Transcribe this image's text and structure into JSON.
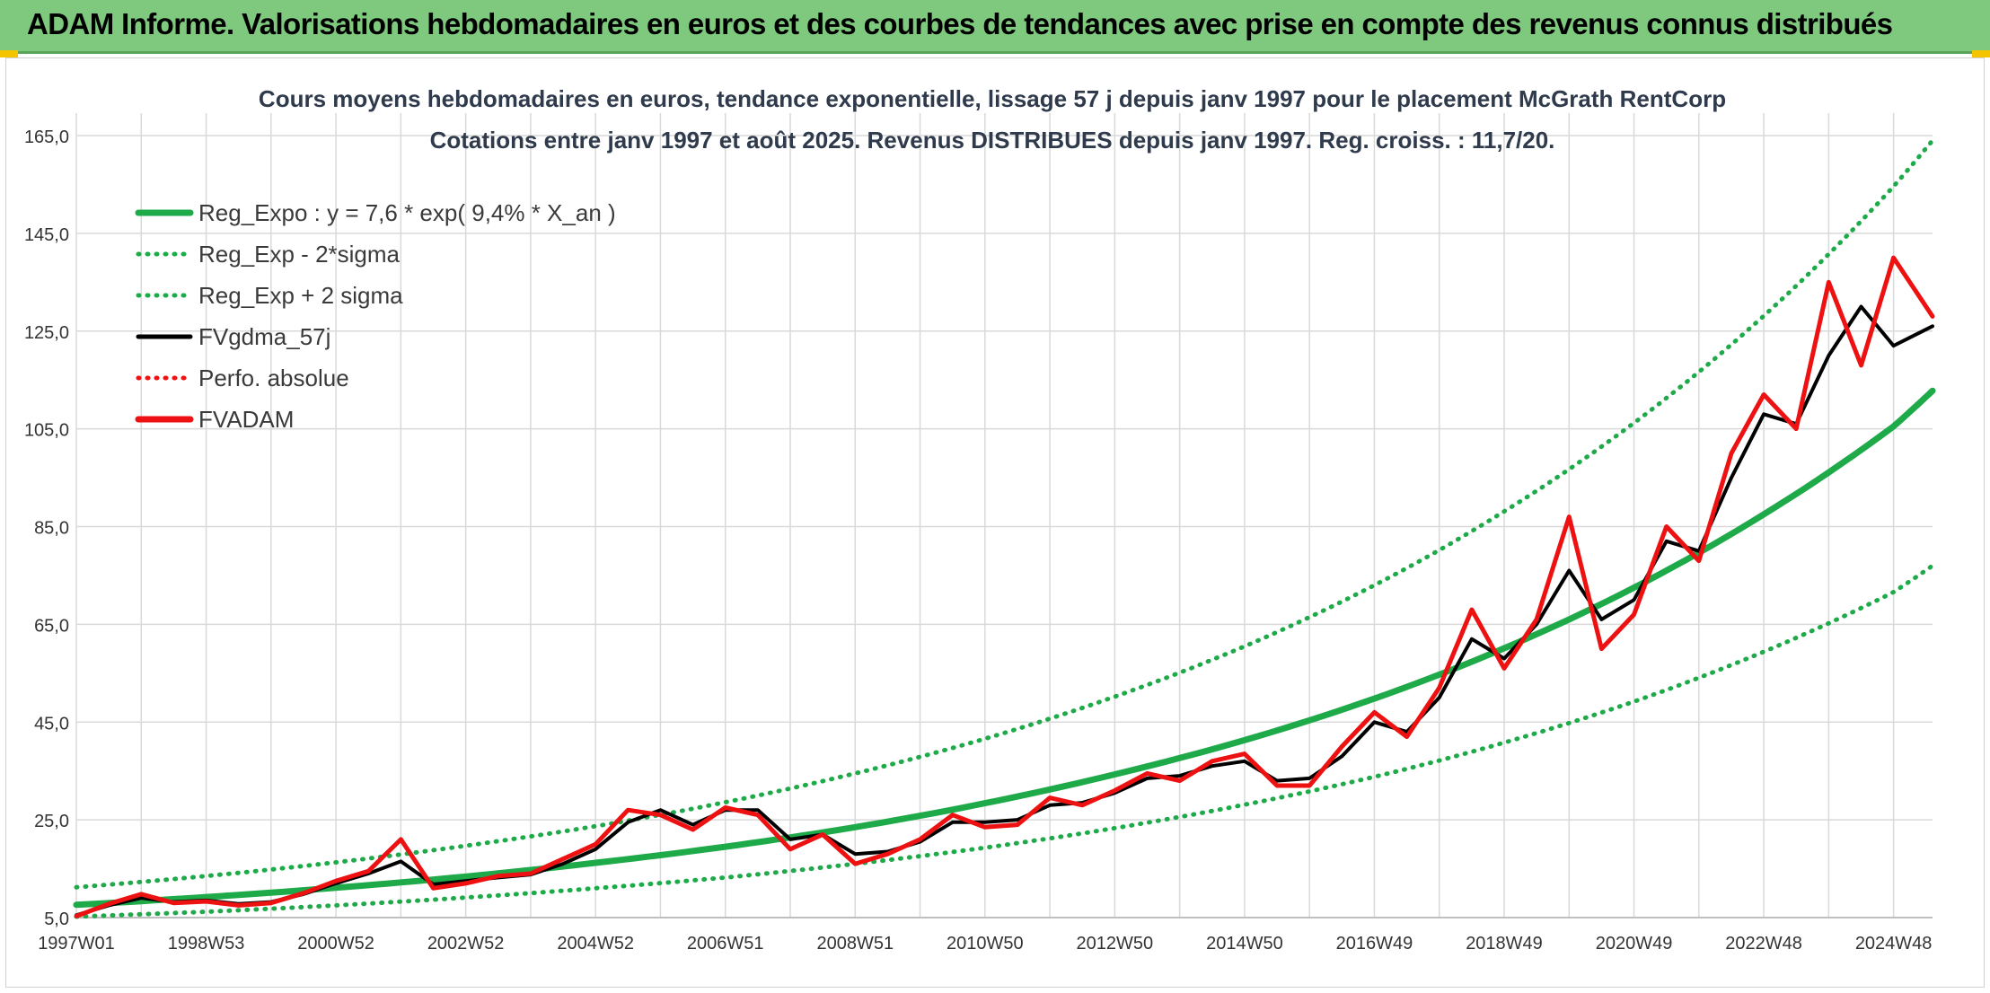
{
  "header": {
    "title": "ADAM Informe. Valorisations hebdomadaires en euros et des courbes de tendances avec prise en compte des revenus connus distribués"
  },
  "colors": {
    "header_bg": "#7fc97f",
    "reg_expo": "#1faa4a",
    "fvgdma": "#000000",
    "fvadam": "#ee1111",
    "perfo": "#ee1111",
    "grid": "#d9d9d9"
  },
  "chart_data": {
    "type": "line",
    "title": "Cours moyens hebdomadaires en euros, tendance exponentielle, lissage 57 j depuis janv 1997 pour le placement McGrath RentCorp",
    "subtitle": "Cotations entre janv 1997 et août 2025. Revenus DISTRIBUES depuis janv 1997. Reg. croiss. : 11,7/20.",
    "x_range": [
      1997.0,
      2025.6
    ],
    "ylim": [
      5,
      165
    ],
    "y_ticks": [
      5,
      25,
      45,
      65,
      85,
      105,
      125,
      145,
      165
    ],
    "y_tick_labels": [
      "5,0",
      "25,0",
      "45,0",
      "65,0",
      "85,0",
      "105,0",
      "125,0",
      "145,0",
      "165,0"
    ],
    "x_ticks": [
      {
        "label": "1997W01",
        "x": 1997.0
      },
      {
        "label": "1998W53",
        "x": 1999.0
      },
      {
        "label": "2000W52",
        "x": 2001.0
      },
      {
        "label": "2002W52",
        "x": 2003.0
      },
      {
        "label": "2004W52",
        "x": 2005.0
      },
      {
        "label": "2006W51",
        "x": 2007.0
      },
      {
        "label": "2008W51",
        "x": 2009.0
      },
      {
        "label": "2010W50",
        "x": 2011.0
      },
      {
        "label": "2012W50",
        "x": 2013.0
      },
      {
        "label": "2014W50",
        "x": 2015.0
      },
      {
        "label": "2016W49",
        "x": 2017.0
      },
      {
        "label": "2018W49",
        "x": 2019.0
      },
      {
        "label": "2020W49",
        "x": 2021.0
      },
      {
        "label": "2022W48",
        "x": 2023.0
      },
      {
        "label": "2024W48",
        "x": 2025.0
      }
    ],
    "grid": true,
    "legend_position": "top-left",
    "legend": [
      {
        "name": "Reg_Expo : y = 7,6 * exp( 9,4% *  X_an )",
        "style": "solid-thick",
        "color": "#1faa4a"
      },
      {
        "name": "Reg_Exp - 2*sigma",
        "style": "dotted",
        "color": "#1faa4a"
      },
      {
        "name": "Reg_Exp + 2 sigma",
        "style": "dotted",
        "color": "#1faa4a"
      },
      {
        "name": "FVgdma_57j",
        "style": "solid",
        "color": "#000000"
      },
      {
        "name": "Perfo. absolue",
        "style": "dotted",
        "color": "#ee1111"
      },
      {
        "name": "FVADAM",
        "style": "solid-thick",
        "color": "#ee1111"
      }
    ],
    "series": [
      {
        "name": "Reg_Expo : y = 7,6 * exp( 9,4% *  X_an )",
        "x": [
          1997.0,
          1999.0,
          2001.0,
          2003.0,
          2005.0,
          2007.0,
          2009.0,
          2011.0,
          2013.0,
          2015.0,
          2017.0,
          2019.0,
          2021.0,
          2023.0,
          2025.0,
          2025.6
        ],
        "values": [
          7.6,
          9.2,
          11.1,
          13.4,
          16.2,
          19.5,
          23.5,
          28.4,
          34.3,
          41.3,
          49.8,
          60.1,
          72.5,
          87.5,
          105.5,
          112.8
        ]
      },
      {
        "name": "Reg_Exp - 2*sigma",
        "x": [
          1997.0,
          1999.0,
          2001.0,
          2003.0,
          2005.0,
          2007.0,
          2009.0,
          2011.0,
          2013.0,
          2015.0,
          2017.0,
          2019.0,
          2021.0,
          2023.0,
          2025.0,
          2025.6
        ],
        "values": [
          5.2,
          6.2,
          7.5,
          9.1,
          11.0,
          13.2,
          16.0,
          19.3,
          23.3,
          28.1,
          33.8,
          40.8,
          49.2,
          59.4,
          71.6,
          77.0
        ]
      },
      {
        "name": "Reg_Exp + 2 sigma",
        "x": [
          1997.0,
          1999.0,
          2001.0,
          2003.0,
          2005.0,
          2007.0,
          2009.0,
          2011.0,
          2013.0,
          2015.0,
          2017.0,
          2019.0,
          2021.0,
          2023.0,
          2025.0,
          2025.6
        ],
        "values": [
          11.2,
          13.5,
          16.3,
          19.7,
          23.7,
          28.6,
          34.5,
          41.6,
          50.2,
          60.5,
          73.0,
          88.1,
          106.2,
          128.1,
          154.6,
          164.0
        ]
      },
      {
        "name": "FVgdma_57j",
        "x": [
          1997.0,
          1997.5,
          1998.0,
          1998.5,
          1999.0,
          1999.5,
          2000.0,
          2000.5,
          2001.0,
          2001.5,
          2002.0,
          2002.5,
          2003.0,
          2003.5,
          2004.0,
          2004.5,
          2005.0,
          2005.5,
          2006.0,
          2006.5,
          2007.0,
          2007.5,
          2008.0,
          2008.5,
          2009.0,
          2009.5,
          2010.0,
          2010.5,
          2011.0,
          2011.5,
          2012.0,
          2012.5,
          2013.0,
          2013.5,
          2014.0,
          2014.5,
          2015.0,
          2015.5,
          2016.0,
          2016.5,
          2017.0,
          2017.5,
          2018.0,
          2018.5,
          2019.0,
          2019.5,
          2020.0,
          2020.5,
          2021.0,
          2021.5,
          2022.0,
          2022.5,
          2023.0,
          2023.5,
          2024.0,
          2024.5,
          2025.0,
          2025.6
        ],
        "values": [
          5.5,
          7.5,
          9.0,
          8.2,
          8.5,
          7.8,
          8.2,
          9.8,
          12.0,
          14.0,
          16.5,
          11.8,
          12.5,
          13.2,
          13.8,
          16.0,
          19.0,
          24.5,
          27.0,
          24.0,
          27.0,
          27.0,
          21.0,
          22.0,
          18.0,
          18.5,
          20.5,
          24.5,
          24.5,
          25.0,
          28.0,
          28.5,
          30.5,
          33.5,
          34.0,
          36.0,
          37.0,
          33.0,
          33.5,
          38.0,
          45.0,
          43.0,
          50.0,
          62.0,
          58.0,
          65.0,
          76.0,
          66.0,
          70.0,
          82.0,
          80.0,
          95.0,
          108.0,
          106.0,
          120.0,
          130.0,
          122.0,
          126.0
        ]
      },
      {
        "name": "FVADAM",
        "x": [
          1997.0,
          1997.5,
          1998.0,
          1998.5,
          1999.0,
          1999.5,
          2000.0,
          2000.5,
          2001.0,
          2001.5,
          2002.0,
          2002.5,
          2003.0,
          2003.5,
          2004.0,
          2004.5,
          2005.0,
          2005.5,
          2006.0,
          2006.5,
          2007.0,
          2007.5,
          2008.0,
          2008.5,
          2009.0,
          2009.5,
          2010.0,
          2010.5,
          2011.0,
          2011.5,
          2012.0,
          2012.5,
          2013.0,
          2013.5,
          2014.0,
          2014.5,
          2015.0,
          2015.5,
          2016.0,
          2016.5,
          2017.0,
          2017.5,
          2018.0,
          2018.5,
          2019.0,
          2019.5,
          2020.0,
          2020.5,
          2021.0,
          2021.5,
          2022.0,
          2022.5,
          2023.0,
          2023.5,
          2024.0,
          2024.5,
          2025.0,
          2025.6
        ],
        "values": [
          5.3,
          7.8,
          9.8,
          8.0,
          8.3,
          7.5,
          8.0,
          10.0,
          12.5,
          14.5,
          21.0,
          11.0,
          12.0,
          13.5,
          14.0,
          17.0,
          20.0,
          27.0,
          26.0,
          23.0,
          27.5,
          26.0,
          19.0,
          22.0,
          16.0,
          18.0,
          21.0,
          26.0,
          23.5,
          24.0,
          29.5,
          28.0,
          31.0,
          34.5,
          33.0,
          37.0,
          38.5,
          32.0,
          32.0,
          40.0,
          47.0,
          42.0,
          52.0,
          68.0,
          56.0,
          66.0,
          87.0,
          60.0,
          67.0,
          85.0,
          78.0,
          100.0,
          112.0,
          105.0,
          135.0,
          118.0,
          140.0,
          128.0
        ]
      }
    ]
  }
}
